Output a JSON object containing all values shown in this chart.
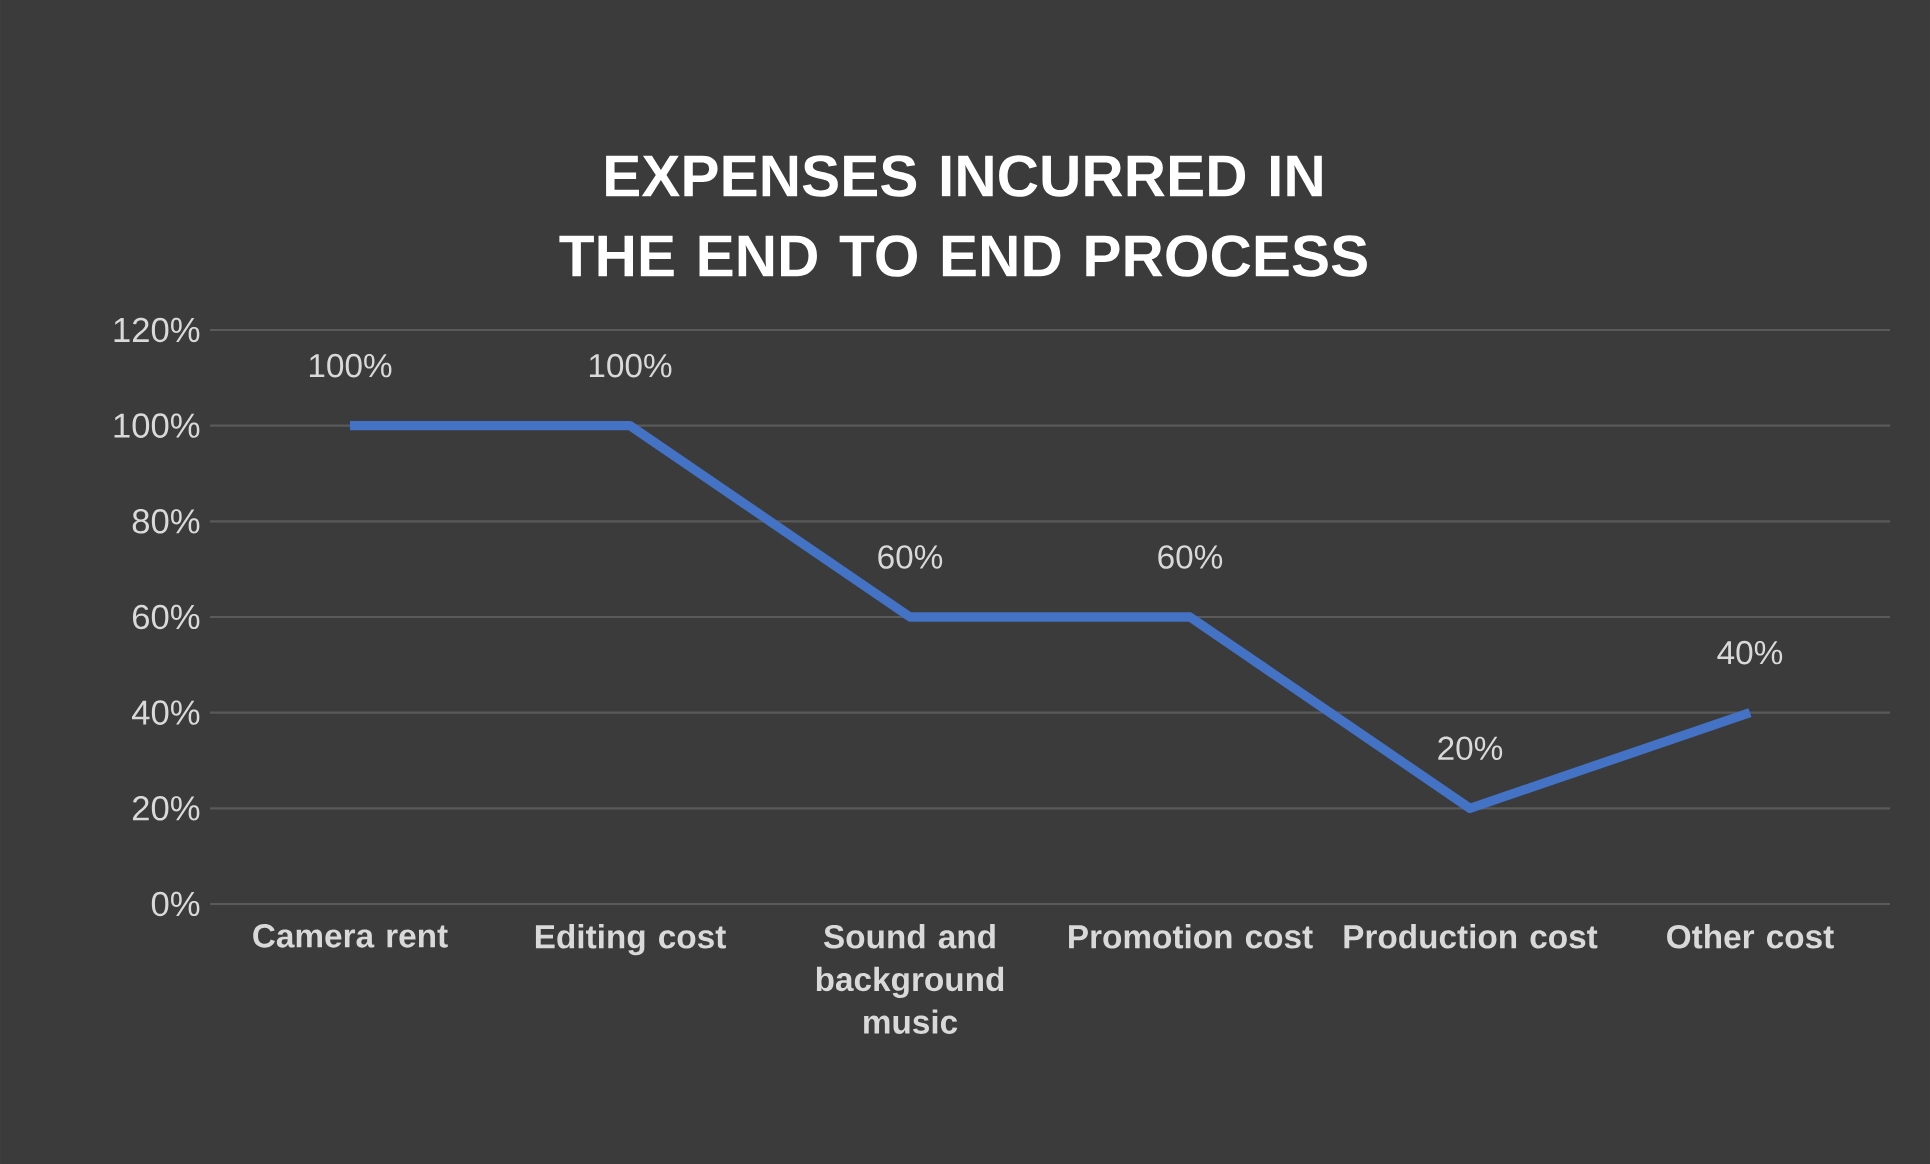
{
  "chart_data": {
    "type": "line",
    "title": "EXPENSES INCURRED IN THE END TO END PROCESS",
    "categories": [
      "Camera rent",
      "Editing cost",
      "Sound and background music",
      "Promotion cost",
      "Production cost",
      "Other cost"
    ],
    "values": [
      100,
      100,
      60,
      60,
      20,
      40
    ],
    "value_labels": [
      "100%",
      "100%",
      "60%",
      "60%",
      "20%",
      "40%"
    ],
    "color": "#4472c4",
    "ylim": [
      0,
      120
    ],
    "yticks": [
      {
        "value": 0,
        "label": "0%"
      },
      {
        "value": 20,
        "label": "20%"
      },
      {
        "value": 40,
        "label": "40%"
      },
      {
        "value": 60,
        "label": "60%"
      },
      {
        "value": 80,
        "label": "80%"
      },
      {
        "value": 100,
        "label": "100%"
      },
      {
        "value": 120,
        "label": "120%"
      }
    ],
    "grid": "y",
    "marker": "none",
    "line_style": "solid"
  }
}
